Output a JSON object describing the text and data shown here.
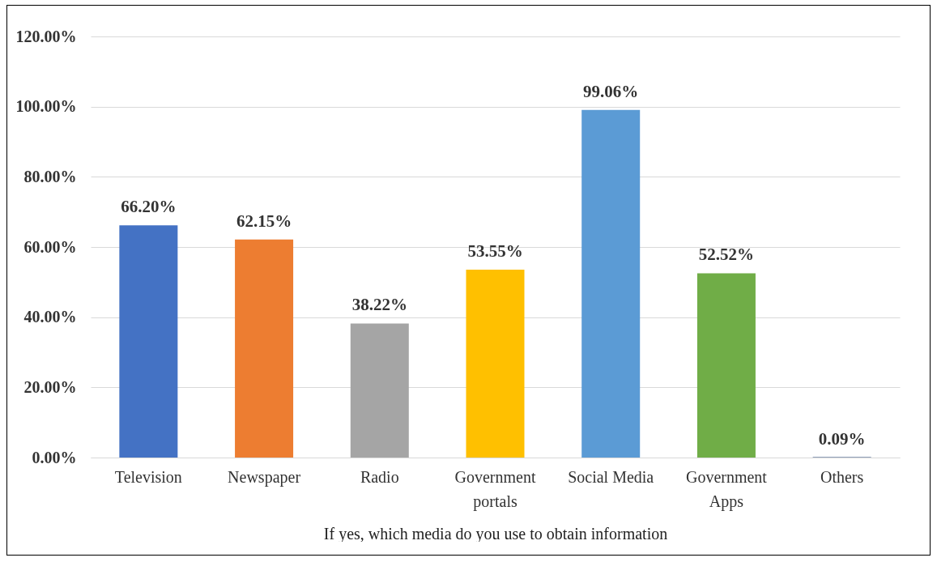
{
  "chart_data": {
    "type": "bar",
    "xlabel": "If yes, which media do you use to obtain information",
    "categories": [
      "Television",
      "Newspaper",
      "Radio",
      "Government portals",
      "Social Media",
      "Government Apps",
      "Others"
    ],
    "values": [
      66.2,
      62.15,
      38.22,
      53.55,
      99.06,
      52.52,
      0.09
    ],
    "colors": [
      "#4472c4",
      "#ed7d31",
      "#a5a5a5",
      "#ffc000",
      "#5b9bd5",
      "#70ad47",
      "#264478"
    ],
    "value_labels": [
      "66.20%",
      "62.15%",
      "38.22%",
      "53.55%",
      "99.06%",
      "52.52%",
      "0.09%"
    ],
    "ylim": [
      0,
      120
    ],
    "yticks": [
      {
        "value": 0,
        "label": "0.00%"
      },
      {
        "value": 20,
        "label": "20.00%"
      },
      {
        "value": 40,
        "label": "40.00%"
      },
      {
        "value": 60,
        "label": "60.00%"
      },
      {
        "value": 80,
        "label": "80.00%"
      },
      {
        "value": 100,
        "label": "100.00%"
      },
      {
        "value": 120,
        "label": "120.00%"
      }
    ],
    "grid": "y"
  }
}
